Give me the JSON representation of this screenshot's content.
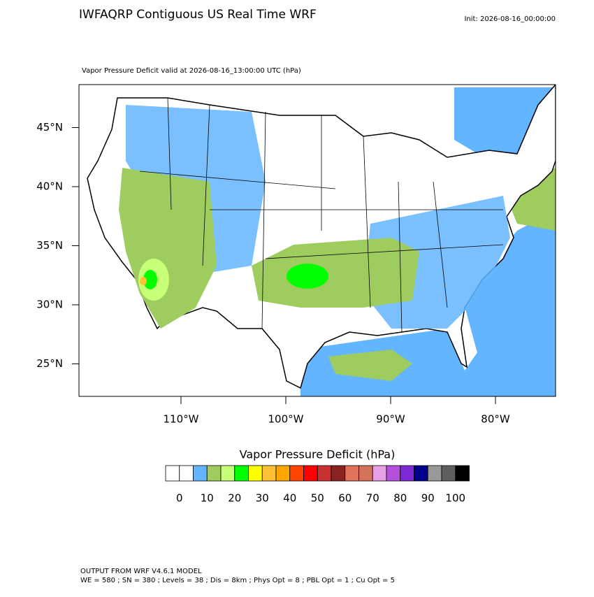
{
  "header": {
    "title": "IWFAQRP Contiguous US Real Time WRF",
    "init": "Init: 2026-08-16_00:00:00"
  },
  "map": {
    "subtitle": "Vapor Pressure Deficit valid at 2026-08-16_13:00:00 UTC   (hPa)",
    "lat_ticks": [
      {
        "value": 45,
        "label": "45°N"
      },
      {
        "value": 40,
        "label": "40°N"
      },
      {
        "value": 35,
        "label": "35°N"
      },
      {
        "value": 30,
        "label": "30°N"
      },
      {
        "value": 25,
        "label": "25°N"
      }
    ],
    "lon_ticks": [
      {
        "value": -110,
        "label": "110°W"
      },
      {
        "value": -100,
        "label": "100°W"
      },
      {
        "value": -90,
        "label": "90°W"
      },
      {
        "value": -80,
        "label": "80°W"
      }
    ]
  },
  "colorbar": {
    "title": "Vapor Pressure Deficit  (hPa)",
    "ticks": [
      0,
      10,
      20,
      30,
      40,
      50,
      60,
      70,
      80,
      90,
      100
    ],
    "colors": [
      "#ffffff",
      "#ffffff",
      "#63b5ff",
      "#9fcc5e",
      "#c8ff78",
      "#00ff00",
      "#ffff00",
      "#ffc033",
      "#ffa500",
      "#ff4500",
      "#ff0000",
      "#c83232",
      "#8b2323",
      "#e0735a",
      "#d2735a",
      "#e6a0e6",
      "#b450dc",
      "#7d28d2",
      "#00008c",
      "#999999",
      "#5f5f5f",
      "#000000"
    ]
  },
  "footer": [
    "OUTPUT FROM WRF V4.6.1 MODEL",
    "WE = 580 ; SN = 380 ; Levels = 38 ; Dis = 8km ; Phys Opt = 8 ; PBL Opt = 1 ; Cu Opt = 5"
  ]
}
